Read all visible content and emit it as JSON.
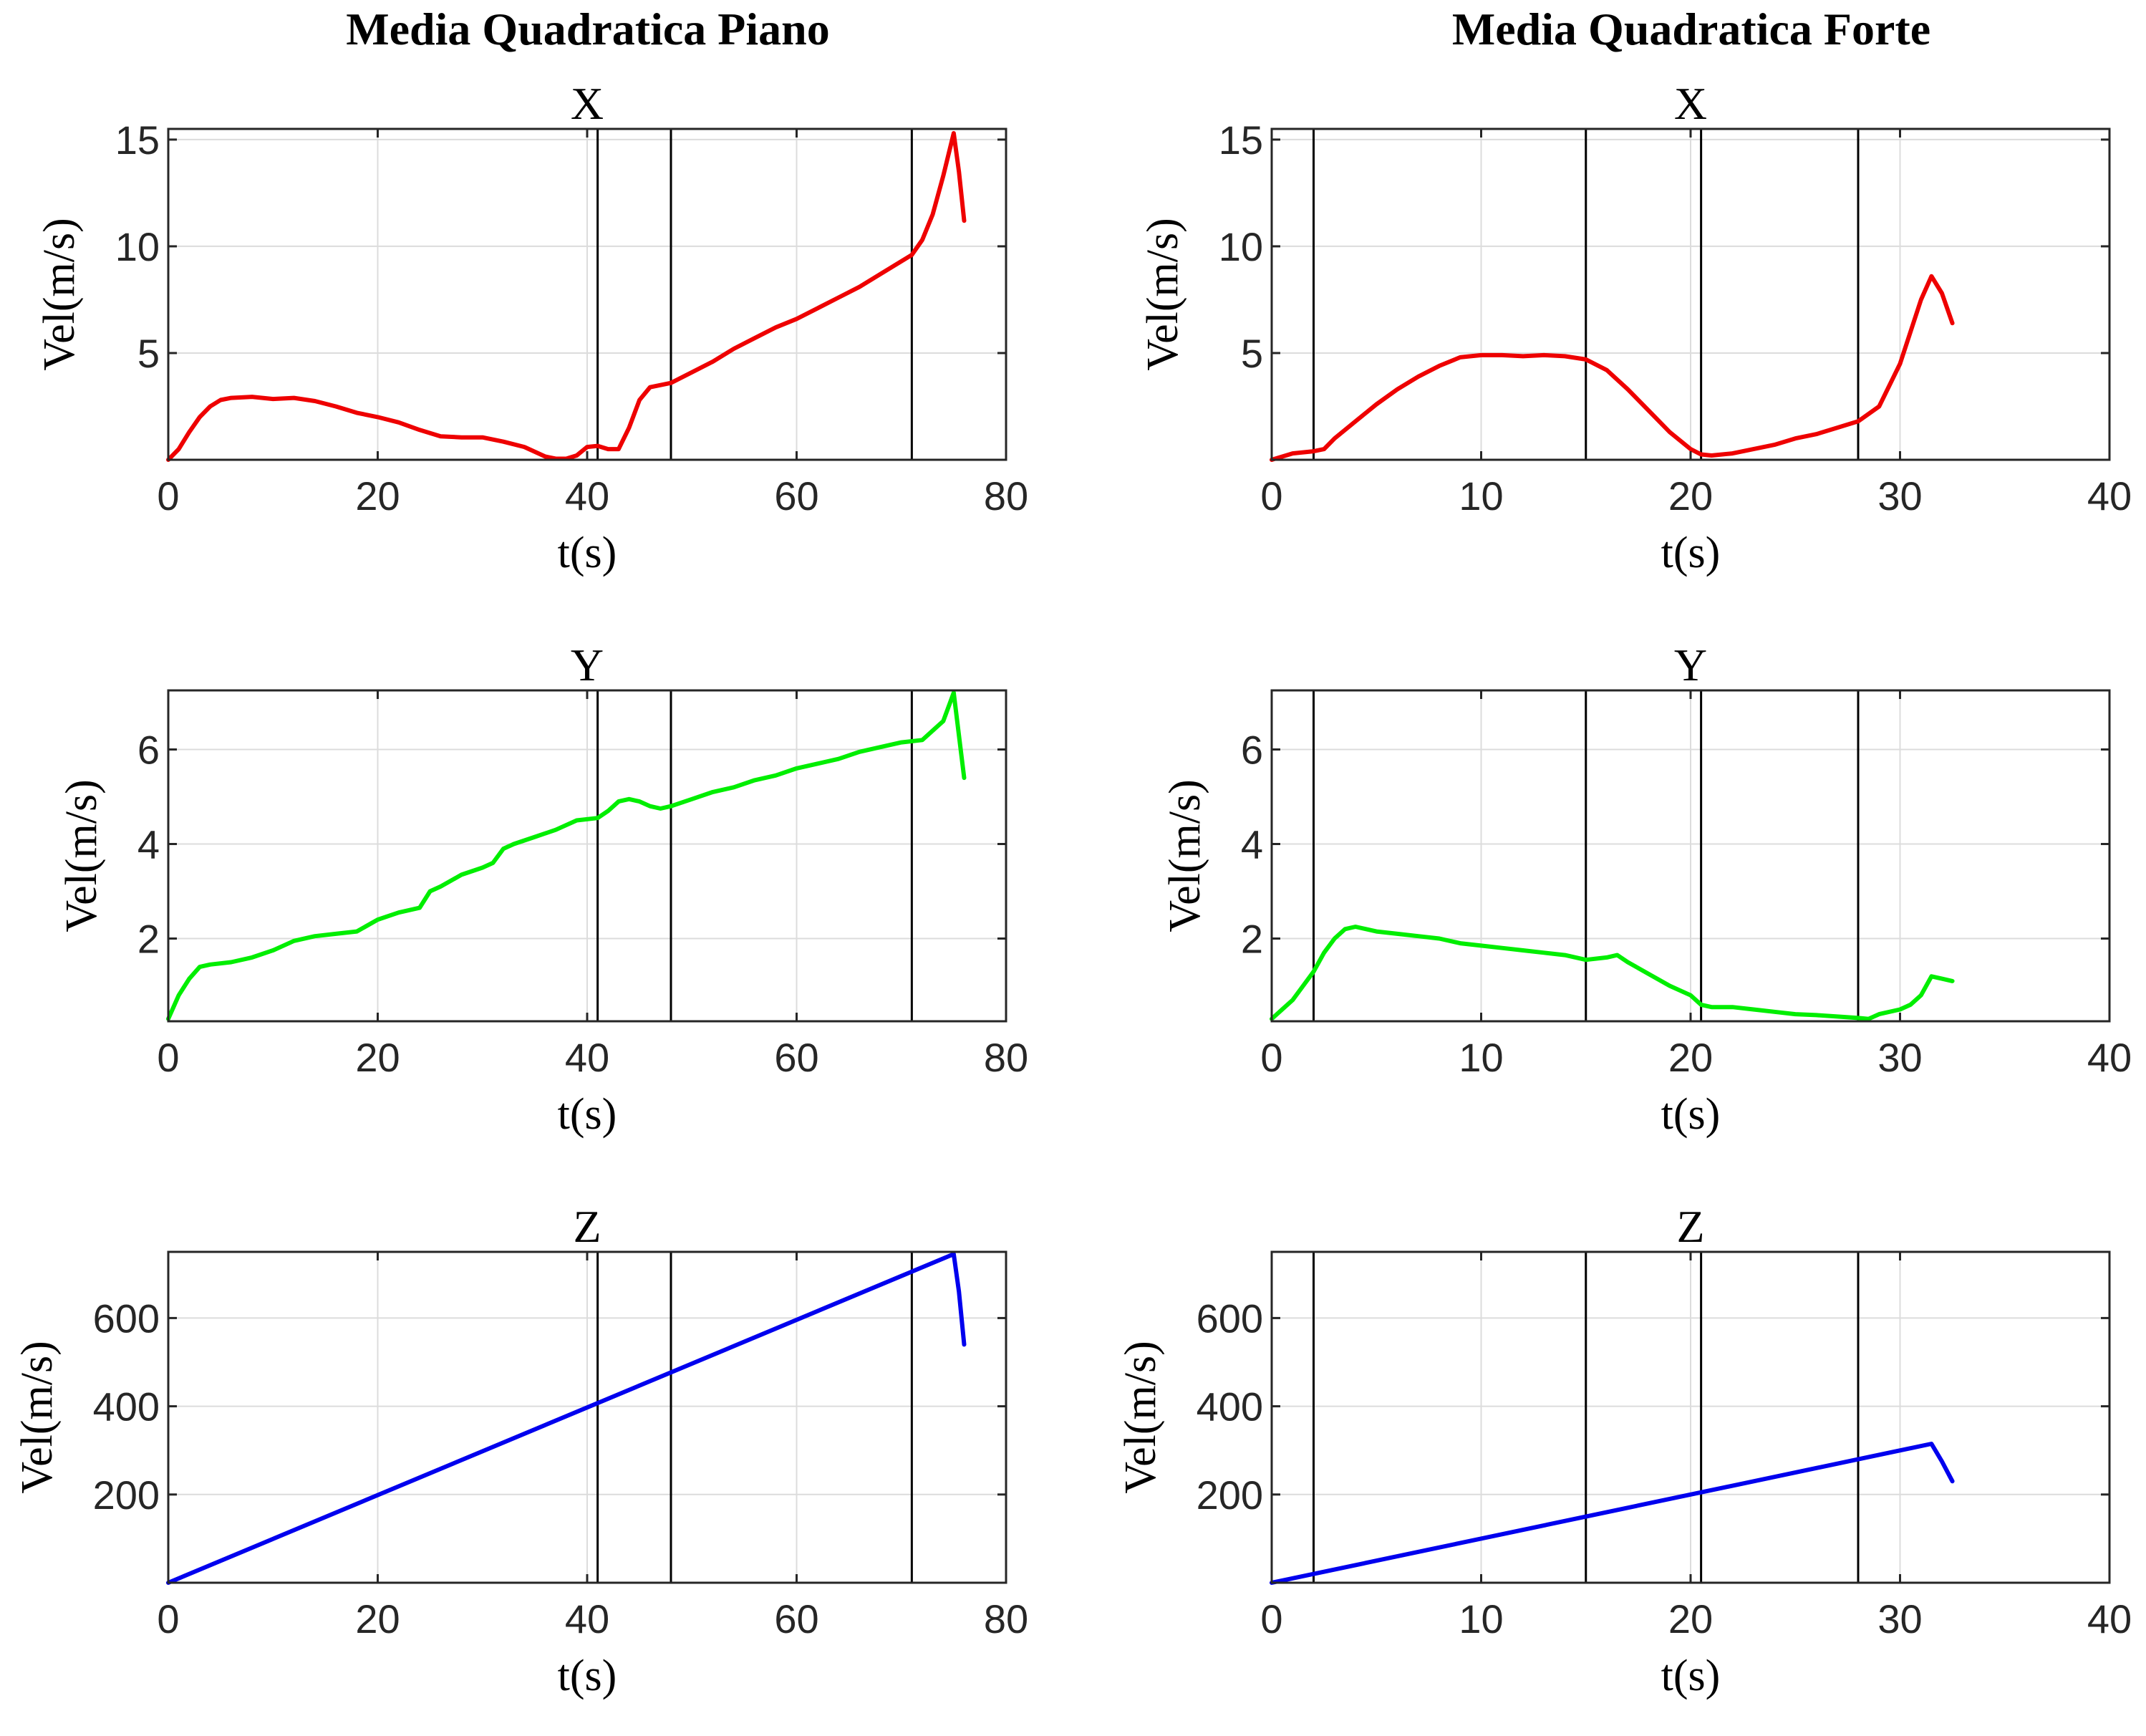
{
  "figure": {
    "column_titles": [
      "Media Quadratica Piano",
      "Media Quadratica Forte"
    ]
  },
  "chart_data": [
    {
      "type": "line",
      "title": "X",
      "xlabel": "t(s)",
      "ylabel": "Vel(m/s)",
      "xlim": [
        0,
        80
      ],
      "ylim": [
        0,
        15.5
      ],
      "xticks": [
        0,
        20,
        40,
        60,
        80
      ],
      "yticks": [
        5,
        10,
        15
      ],
      "grid": true,
      "color": "#ee0000",
      "vlines": [
        41,
        48,
        71
      ],
      "series": [
        {
          "x": [
            0,
            1,
            2,
            3,
            4,
            5,
            6,
            8,
            10,
            12,
            14,
            16,
            18,
            20,
            22,
            24,
            26,
            28,
            30,
            32,
            34,
            36,
            37,
            38,
            39,
            40,
            41,
            42,
            43,
            44,
            45,
            46,
            47,
            48,
            50,
            52,
            54,
            56,
            58,
            60,
            62,
            64,
            66,
            68,
            70,
            71,
            72,
            73,
            74,
            75,
            75.5,
            76
          ],
          "y": [
            0,
            0.5,
            1.3,
            2.0,
            2.5,
            2.8,
            2.9,
            2.95,
            2.85,
            2.9,
            2.75,
            2.5,
            2.2,
            2.0,
            1.75,
            1.4,
            1.1,
            1.05,
            1.05,
            0.85,
            0.6,
            0.15,
            0.05,
            0.05,
            0.2,
            0.6,
            0.65,
            0.5,
            0.5,
            1.5,
            2.8,
            3.4,
            3.5,
            3.6,
            4.1,
            4.6,
            5.2,
            5.7,
            6.2,
            6.6,
            7.1,
            7.6,
            8.1,
            8.7,
            9.3,
            9.6,
            10.3,
            11.5,
            13.3,
            15.3,
            13.5,
            11.2
          ]
        }
      ]
    },
    {
      "type": "line",
      "title": "X",
      "xlabel": "t(s)",
      "ylabel": "Vel(m/s)",
      "xlim": [
        0,
        40
      ],
      "ylim": [
        0,
        15.5
      ],
      "xticks": [
        0,
        10,
        20,
        30,
        40
      ],
      "yticks": [
        5,
        10,
        15
      ],
      "grid": true,
      "color": "#ee0000",
      "vlines": [
        2,
        15,
        20.5,
        28
      ],
      "series": [
        {
          "x": [
            0,
            1,
            2,
            2.5,
            3,
            4,
            5,
            6,
            7,
            8,
            9,
            10,
            11,
            12,
            13,
            14,
            15,
            16,
            17,
            18,
            19,
            20,
            20.5,
            21,
            22,
            23,
            24,
            25,
            26,
            27,
            28,
            29,
            30,
            31,
            31.5,
            32,
            32.5
          ],
          "y": [
            0,
            0.3,
            0.4,
            0.5,
            1.0,
            1.8,
            2.6,
            3.3,
            3.9,
            4.4,
            4.8,
            4.9,
            4.9,
            4.85,
            4.9,
            4.85,
            4.7,
            4.2,
            3.3,
            2.3,
            1.3,
            0.5,
            0.25,
            0.2,
            0.3,
            0.5,
            0.7,
            1.0,
            1.2,
            1.5,
            1.8,
            2.5,
            4.5,
            7.5,
            8.6,
            7.8,
            6.4
          ]
        }
      ]
    },
    {
      "type": "line",
      "title": "Y",
      "xlabel": "t(s)",
      "ylabel": "Vel(m/s)",
      "xlim": [
        0,
        80
      ],
      "ylim": [
        0.25,
        7.25
      ],
      "xticks": [
        0,
        20,
        40,
        60,
        80
      ],
      "yticks": [
        2,
        4,
        6
      ],
      "grid": true,
      "color": "#00ee00",
      "vlines": [
        41,
        48,
        71
      ],
      "series": [
        {
          "x": [
            0,
            1,
            2,
            3,
            4,
            6,
            8,
            10,
            12,
            14,
            16,
            18,
            20,
            22,
            24,
            25,
            26,
            28,
            30,
            31,
            32,
            33,
            35,
            37,
            39,
            41,
            42,
            43,
            44,
            45,
            46,
            47,
            48,
            50,
            52,
            54,
            56,
            58,
            60,
            62,
            64,
            66,
            68,
            70,
            72,
            73,
            74,
            75,
            75.5,
            76
          ],
          "y": [
            0.3,
            0.8,
            1.15,
            1.4,
            1.45,
            1.5,
            1.6,
            1.75,
            1.95,
            2.05,
            2.1,
            2.15,
            2.4,
            2.55,
            2.65,
            3.0,
            3.1,
            3.35,
            3.5,
            3.6,
            3.9,
            4.0,
            4.15,
            4.3,
            4.5,
            4.55,
            4.7,
            4.9,
            4.95,
            4.9,
            4.8,
            4.75,
            4.8,
            4.95,
            5.1,
            5.2,
            5.35,
            5.45,
            5.6,
            5.7,
            5.8,
            5.95,
            6.05,
            6.15,
            6.2,
            6.4,
            6.6,
            7.2,
            6.3,
            5.4
          ]
        }
      ]
    },
    {
      "type": "line",
      "title": "Y",
      "xlabel": "t(s)",
      "ylabel": "Vel(m/s)",
      "xlim": [
        0,
        40
      ],
      "ylim": [
        0.25,
        7.25
      ],
      "xticks": [
        0,
        10,
        20,
        30,
        40
      ],
      "yticks": [
        2,
        4,
        6
      ],
      "grid": true,
      "color": "#00ee00",
      "vlines": [
        2,
        15,
        20.5,
        28
      ],
      "series": [
        {
          "x": [
            0,
            0.5,
            1,
            1.5,
            2,
            2.5,
            3,
            3.5,
            4,
            5,
            6,
            7,
            8,
            9,
            10,
            11,
            12,
            13,
            14,
            15,
            16,
            16.5,
            17,
            18,
            19,
            20,
            20.5,
            21,
            22,
            23,
            24,
            25,
            26,
            27,
            28,
            28.5,
            29,
            30,
            30.5,
            31,
            31.5,
            32,
            32.5
          ],
          "y": [
            0.3,
            0.5,
            0.7,
            1.0,
            1.3,
            1.7,
            2.0,
            2.2,
            2.25,
            2.15,
            2.1,
            2.05,
            2.0,
            1.9,
            1.85,
            1.8,
            1.75,
            1.7,
            1.65,
            1.55,
            1.6,
            1.65,
            1.5,
            1.25,
            1.0,
            0.8,
            0.6,
            0.55,
            0.55,
            0.5,
            0.45,
            0.4,
            0.38,
            0.35,
            0.32,
            0.3,
            0.4,
            0.5,
            0.6,
            0.8,
            1.2,
            1.15,
            1.1
          ]
        }
      ]
    },
    {
      "type": "line",
      "title": "Z",
      "xlabel": "t(s)",
      "ylabel": "Vel(m/s)",
      "xlim": [
        0,
        80
      ],
      "ylim": [
        0,
        750
      ],
      "xticks": [
        0,
        20,
        40,
        60,
        80
      ],
      "yticks": [
        200,
        400,
        600
      ],
      "grid": true,
      "color": "#0000ee",
      "vlines": [
        41,
        48,
        71
      ],
      "series": [
        {
          "x": [
            0,
            75,
            75.5,
            76
          ],
          "y": [
            0,
            745,
            660,
            540
          ]
        }
      ]
    },
    {
      "type": "line",
      "title": "Z",
      "xlabel": "t(s)",
      "ylabel": "Vel(m/s)",
      "xlim": [
        0,
        40
      ],
      "ylim": [
        0,
        750
      ],
      "xticks": [
        0,
        10,
        20,
        30,
        40
      ],
      "yticks": [
        200,
        400,
        600
      ],
      "grid": true,
      "color": "#0000ee",
      "vlines": [
        2,
        15,
        20.5,
        28
      ],
      "series": [
        {
          "x": [
            0,
            31.5,
            32,
            32.5
          ],
          "y": [
            0,
            315,
            275,
            230
          ]
        }
      ]
    }
  ]
}
